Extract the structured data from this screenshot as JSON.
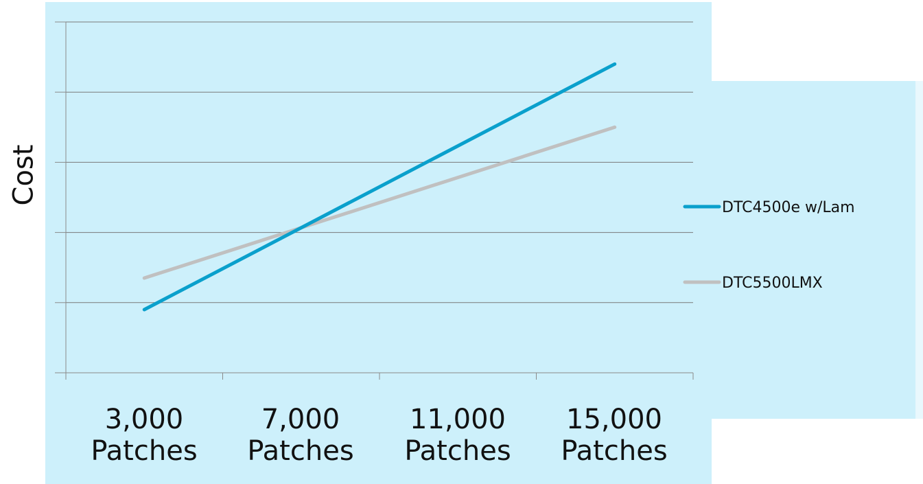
{
  "chart_data": {
    "type": "line",
    "ylabel": "Cost",
    "xlabel": "",
    "categories": [
      {
        "value": "3,000",
        "unit": "Patches"
      },
      {
        "value": "7,000",
        "unit": "Patches"
      },
      {
        "value": "11,000",
        "unit": "Patches"
      },
      {
        "value": "15,000",
        "unit": "Patches"
      }
    ],
    "ylim": [
      0,
      5
    ],
    "y_gridlines": 5,
    "grid": true,
    "legend_position": "right",
    "series": [
      {
        "name": "DTC4500e w/Lam",
        "color": "#0aa0cc",
        "start": 0.9,
        "end": 4.4
      },
      {
        "name": "DTC5500LMX",
        "color": "#c0c0c0",
        "start": 1.35,
        "end": 3.5
      }
    ],
    "colors": {
      "plot_background": "#cdf0fb",
      "axis": "#8a8a8a",
      "gridline": "#7a7a7a"
    }
  }
}
